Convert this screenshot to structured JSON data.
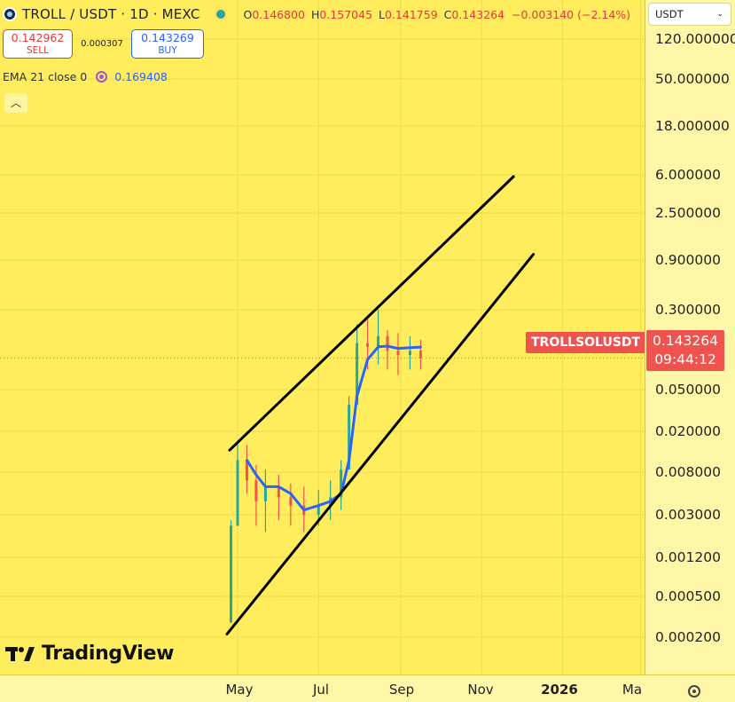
{
  "header": {
    "title": "TROLL / USDT · 1D · MEXC",
    "ohlc": {
      "o_key": "O",
      "o_val": "0.146800",
      "h_key": "H",
      "h_val": "0.157045",
      "l_key": "L",
      "l_val": "0.141759",
      "c_key": "C",
      "c_val": "0.143264",
      "change": "−0.003140 (−2.14%)"
    }
  },
  "trade": {
    "sell_price": "0.142962",
    "sell_label": "SELL",
    "spread": "0.000307",
    "buy_price": "0.143269",
    "buy_label": "BUY"
  },
  "indicator": {
    "label": "EMA 21 close 0",
    "value": "0.169408"
  },
  "collapse_glyph": "︿",
  "currency": {
    "selected": "USDT",
    "chevron": "⌄"
  },
  "price_axis": {
    "ticks": [
      "120.000000",
      "50.000000",
      "18.000000",
      "6.000000",
      "2.500000",
      "0.900000",
      "0.300000",
      "0.050000",
      "0.020000",
      "0.008000",
      "0.003000",
      "0.001200",
      "0.000500",
      "0.000200"
    ]
  },
  "last_price": {
    "value": "0.143264",
    "countdown": "09:44:12",
    "symbol": "TROLLSOLUSDT"
  },
  "time_axis": {
    "labels": [
      {
        "text": "May",
        "bold": false
      },
      {
        "text": "Jul",
        "bold": false
      },
      {
        "text": "Sep",
        "bold": false
      },
      {
        "text": "Nov",
        "bold": false
      },
      {
        "text": "2026",
        "bold": true
      },
      {
        "text": "Ma",
        "bold": false
      }
    ]
  },
  "branding": {
    "logo_text": "TradingView"
  },
  "colors": {
    "background": "#ffed5e",
    "candle_up": "#26a69a",
    "candle_down": "#ef5350",
    "ema": "#2962ff",
    "channel": "#000000",
    "last_price_line": "#ef5350"
  },
  "chart_data": {
    "type": "candlestick",
    "title": "TROLL / USDT · 1D · MEXC",
    "y_scale": "log",
    "y_ticks": [
      120,
      50,
      18,
      6,
      2.5,
      0.9,
      0.3,
      0.05,
      0.02,
      0.008,
      0.003,
      0.0012,
      0.0005,
      0.0002
    ],
    "x_labels": [
      "May",
      "Jul",
      "Sep",
      "Nov",
      "2026",
      "Ma"
    ],
    "last_price": 0.143264,
    "indicator": {
      "name": "EMA 21 close 0",
      "last": 0.169408
    },
    "price_series": [
      {
        "date": "2025-04-26",
        "low": 0.0025,
        "high": 0.012,
        "close": 0.011
      },
      {
        "date": "2025-05-01",
        "low": 0.012,
        "high": 0.04,
        "close": 0.03
      },
      {
        "date": "2025-05-08",
        "low": 0.018,
        "high": 0.038,
        "close": 0.022
      },
      {
        "date": "2025-05-15",
        "low": 0.011,
        "high": 0.028,
        "close": 0.016
      },
      {
        "date": "2025-05-22",
        "low": 0.01,
        "high": 0.026,
        "close": 0.02
      },
      {
        "date": "2025-06-01",
        "low": 0.012,
        "high": 0.024,
        "close": 0.017
      },
      {
        "date": "2025-06-10",
        "low": 0.011,
        "high": 0.021,
        "close": 0.015
      },
      {
        "date": "2025-06-20",
        "low": 0.01,
        "high": 0.02,
        "close": 0.013
      },
      {
        "date": "2025-07-01",
        "low": 0.011,
        "high": 0.019,
        "close": 0.015
      },
      {
        "date": "2025-07-10",
        "low": 0.012,
        "high": 0.022,
        "close": 0.017
      },
      {
        "date": "2025-07-18",
        "low": 0.014,
        "high": 0.03,
        "close": 0.026
      },
      {
        "date": "2025-07-24",
        "low": 0.03,
        "high": 0.08,
        "close": 0.07
      },
      {
        "date": "2025-07-30",
        "low": 0.09,
        "high": 0.24,
        "close": 0.18
      },
      {
        "date": "2025-08-07",
        "low": 0.12,
        "high": 0.26,
        "close": 0.17
      },
      {
        "date": "2025-08-15",
        "low": 0.13,
        "high": 0.3,
        "close": 0.2
      },
      {
        "date": "2025-08-22",
        "low": 0.12,
        "high": 0.22,
        "close": 0.16
      },
      {
        "date": "2025-08-30",
        "low": 0.11,
        "high": 0.21,
        "close": 0.15
      },
      {
        "date": "2025-09-08",
        "low": 0.12,
        "high": 0.2,
        "close": 0.16
      },
      {
        "date": "2025-09-16",
        "low": 0.12,
        "high": 0.19,
        "close": 0.143264
      }
    ],
    "ema_series": [
      {
        "date": "2025-05-08",
        "value": 0.03
      },
      {
        "date": "2025-05-15",
        "value": 0.024
      },
      {
        "date": "2025-05-22",
        "value": 0.02
      },
      {
        "date": "2025-06-01",
        "value": 0.02
      },
      {
        "date": "2025-06-10",
        "value": 0.018
      },
      {
        "date": "2025-06-20",
        "value": 0.014
      },
      {
        "date": "2025-07-01",
        "value": 0.015
      },
      {
        "date": "2025-07-10",
        "value": 0.016
      },
      {
        "date": "2025-07-18",
        "value": 0.018
      },
      {
        "date": "2025-07-24",
        "value": 0.03
      },
      {
        "date": "2025-07-30",
        "value": 0.08
      },
      {
        "date": "2025-08-07",
        "value": 0.14
      },
      {
        "date": "2025-08-15",
        "value": 0.17
      },
      {
        "date": "2025-08-22",
        "value": 0.172
      },
      {
        "date": "2025-08-30",
        "value": 0.166
      },
      {
        "date": "2025-09-08",
        "value": 0.168
      },
      {
        "date": "2025-09-16",
        "value": 0.169408
      }
    ],
    "channel_lines": [
      {
        "name": "",
        "start": {
          "date": "2025-04-23",
          "price": 0.0021
        },
        "end": {
          "date": "2025-12-10",
          "price": 0.7
        }
      },
      {
        "name": "",
        "start": {
          "date": "2025-04-25",
          "price": 0.035
        },
        "end": {
          "date": "2025-11-25",
          "price": 2.3
        }
      }
    ]
  }
}
